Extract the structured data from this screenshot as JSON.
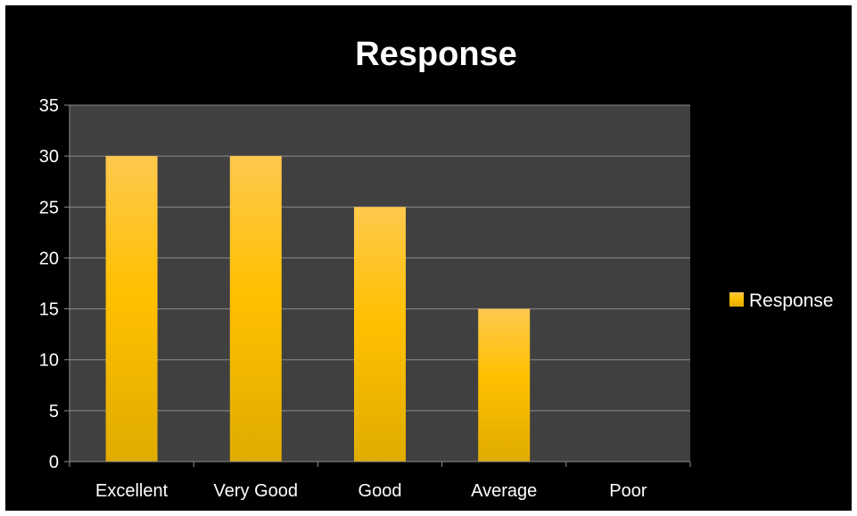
{
  "chart_data": {
    "type": "bar",
    "title": "Response",
    "categories": [
      "Excellent",
      "Very Good",
      "Good",
      "Average",
      "Poor"
    ],
    "series": [
      {
        "name": "Response",
        "values": [
          30,
          30,
          25,
          15,
          0
        ]
      }
    ],
    "xlabel": "",
    "ylabel": "",
    "ylim": [
      0,
      35
    ],
    "yticks": [
      0,
      5,
      10,
      15,
      20,
      25,
      30,
      35
    ],
    "grid": true,
    "legend_position": "right",
    "colors": {
      "background": "#000000",
      "plot_area": "#404040",
      "bar_top": "#ffc94d",
      "bar_mid": "#ffc000",
      "bar_bottom": "#e0ac00",
      "gridline": "#8c8c8c",
      "text": "#ffffff"
    }
  }
}
